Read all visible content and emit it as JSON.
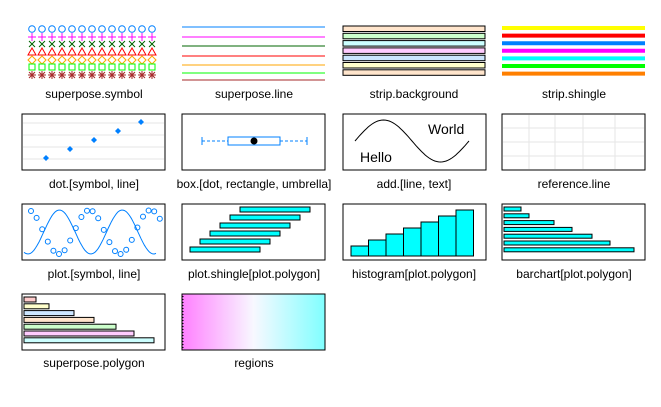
{
  "panels": [
    {
      "id": "superpose-symbol",
      "label": "superpose.symbol"
    },
    {
      "id": "superpose-line",
      "label": "superpose.line"
    },
    {
      "id": "strip-background",
      "label": "strip.background"
    },
    {
      "id": "strip-shingle",
      "label": "strip.shingle"
    },
    {
      "id": "dot",
      "label": "dot.[symbol, line]"
    },
    {
      "id": "box",
      "label": "box.[dot, rectangle, umbrella]"
    },
    {
      "id": "add",
      "label": "add.[line, text]",
      "texts": [
        "World",
        "Hello"
      ]
    },
    {
      "id": "reference-line",
      "label": "reference.line"
    },
    {
      "id": "plot",
      "label": "plot.[symbol, line]"
    },
    {
      "id": "plot-shingle",
      "label": "plot.shingle[plot.polygon]"
    },
    {
      "id": "histogram",
      "label": "histogram[plot.polygon]"
    },
    {
      "id": "barchart",
      "label": "barchart[plot.polygon]"
    },
    {
      "id": "superpose-polygon",
      "label": "superpose.polygon"
    },
    {
      "id": "regions",
      "label": "regions"
    }
  ],
  "colors": {
    "superpose": [
      "#0080ff",
      "#ff00ff",
      "#006400",
      "#ff0000",
      "#ffa500",
      "#00ff00",
      "#a52a2a"
    ],
    "strip_background": [
      "#ffe5cc",
      "#ccffcc",
      "#ccffff",
      "#ffccff",
      "#cce6ff",
      "#ffffcc",
      "#ffe5cc"
    ],
    "strip_shingle": [
      "#ff7f00",
      "#00ff00",
      "#00ffff",
      "#ff00ff",
      "#0080ff",
      "#ff0000",
      "#ffff00"
    ],
    "polygon_fill": "#00ffff",
    "superpose_polygon": [
      "#ccffff",
      "#ffccff",
      "#ccffcc",
      "#ffe5cc",
      "#cce6ff",
      "#ffffcc",
      "#ffcccc"
    ],
    "dot_symbol": "#0080ff",
    "reference": "#e6e6e6",
    "plot_line": "#0080ff"
  }
}
